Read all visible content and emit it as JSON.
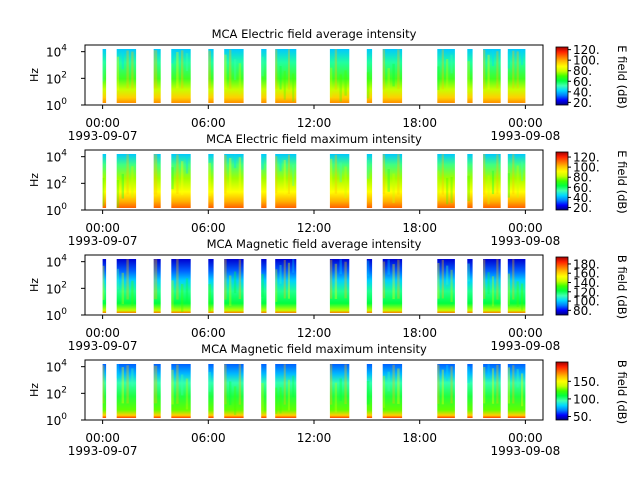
{
  "figure": {
    "time_start": "1993-09-07 00:00",
    "time_end": "1993-09-08 00:00"
  },
  "colormap": [
    "#00007f",
    "#0000ff",
    "#0080ff",
    "#00d8ff",
    "#40ffb0",
    "#00ff40",
    "#40ff00",
    "#c8ff00",
    "#ffff00",
    "#ffc000",
    "#ff7000",
    "#ff2000",
    "#a00000"
  ],
  "chart_data": [
    {
      "type": "heatmap",
      "title": "MCA  Electric field average intensity",
      "ylabel": "Hz",
      "xlabel": "",
      "x_ticks": [
        "00:00",
        "06:00",
        "12:00",
        "18:00",
        "00:00"
      ],
      "x_tick_hours": [
        0,
        6,
        12,
        18,
        24
      ],
      "x_date_labels": [
        {
          "hour": 0,
          "text": "1993-09-07"
        },
        {
          "hour": 24,
          "text": "1993-09-08"
        }
      ],
      "xlim_hours": [
        -1,
        25
      ],
      "y_scale": "log",
      "y_ticks": [
        {
          "base": "10",
          "exp": "0"
        },
        {
          "base": "10",
          "exp": "2"
        },
        {
          "base": "10",
          "exp": "4"
        }
      ],
      "y_tick_exponents": [
        0,
        2,
        4
      ],
      "ylim_exponents": [
        0,
        4.5
      ],
      "colorbar": {
        "label": "E field (dB)",
        "range": [
          15,
          125
        ],
        "ticks": [
          "20.",
          "40.",
          "60.",
          "80.",
          "100.",
          "120."
        ],
        "tick_values": [
          20,
          40,
          60,
          80,
          100,
          120
        ]
      },
      "data_intervals_hours": [
        [
          0.0,
          0.2
        ],
        [
          0.8,
          1.9
        ],
        [
          2.9,
          3.3
        ],
        [
          3.9,
          5.0
        ],
        [
          6.0,
          6.3
        ],
        [
          6.9,
          8.0
        ],
        [
          9.0,
          9.3
        ],
        [
          9.8,
          11.0
        ],
        [
          12.9,
          14.0
        ],
        [
          15.0,
          15.3
        ],
        [
          15.9,
          17.0
        ],
        [
          19.0,
          20.0
        ],
        [
          20.7,
          21.0
        ],
        [
          21.6,
          22.6
        ],
        [
          23.0,
          24.0
        ]
      ],
      "profile": "e_avg"
    },
    {
      "type": "heatmap",
      "title": "MCA  Electric field maximum intensity",
      "ylabel": "Hz",
      "xlabel": "",
      "x_ticks": [
        "00:00",
        "06:00",
        "12:00",
        "18:00",
        "00:00"
      ],
      "x_tick_hours": [
        0,
        6,
        12,
        18,
        24
      ],
      "x_date_labels": [
        {
          "hour": 0,
          "text": "1993-09-07"
        },
        {
          "hour": 24,
          "text": "1993-09-08"
        }
      ],
      "xlim_hours": [
        -1,
        25
      ],
      "y_scale": "log",
      "y_ticks": [
        {
          "base": "10",
          "exp": "0"
        },
        {
          "base": "10",
          "exp": "2"
        },
        {
          "base": "10",
          "exp": "4"
        }
      ],
      "y_tick_exponents": [
        0,
        2,
        4
      ],
      "ylim_exponents": [
        0,
        4.5
      ],
      "colorbar": {
        "label": "E field (dB)",
        "range": [
          15,
          130
        ],
        "ticks": [
          "20.",
          "40.",
          "60.",
          "80.",
          "100.",
          "120."
        ],
        "tick_values": [
          20,
          40,
          60,
          80,
          100,
          120
        ]
      },
      "data_intervals_hours": [
        [
          0.0,
          0.2
        ],
        [
          0.8,
          1.9
        ],
        [
          2.9,
          3.3
        ],
        [
          3.9,
          5.0
        ],
        [
          6.0,
          6.3
        ],
        [
          6.9,
          8.0
        ],
        [
          9.0,
          9.3
        ],
        [
          9.8,
          11.0
        ],
        [
          12.9,
          14.0
        ],
        [
          15.0,
          15.3
        ],
        [
          15.9,
          17.0
        ],
        [
          19.0,
          20.0
        ],
        [
          20.7,
          21.0
        ],
        [
          21.6,
          22.6
        ],
        [
          23.0,
          24.0
        ]
      ],
      "profile": "e_max"
    },
    {
      "type": "heatmap",
      "title": "MCA  Magnetic field average intensity",
      "ylabel": "Hz",
      "xlabel": "",
      "x_ticks": [
        "00:00",
        "06:00",
        "12:00",
        "18:00",
        "00:00"
      ],
      "x_tick_hours": [
        0,
        6,
        12,
        18,
        24
      ],
      "x_date_labels": [
        {
          "hour": 0,
          "text": "1993-09-07"
        },
        {
          "hour": 24,
          "text": "1993-09-08"
        }
      ],
      "xlim_hours": [
        -1,
        25
      ],
      "y_scale": "log",
      "y_ticks": [
        {
          "base": "10",
          "exp": "0"
        },
        {
          "base": "10",
          "exp": "2"
        },
        {
          "base": "10",
          "exp": "4"
        }
      ],
      "y_tick_exponents": [
        0,
        2,
        4
      ],
      "ylim_exponents": [
        0,
        4.5
      ],
      "colorbar": {
        "label": "B field (dB)",
        "range": [
          70,
          195
        ],
        "ticks": [
          "80.",
          "100.",
          "120.",
          "140.",
          "160.",
          "180."
        ],
        "tick_values": [
          80,
          100,
          120,
          140,
          160,
          180
        ]
      },
      "data_intervals_hours": [
        [
          0.0,
          0.2
        ],
        [
          0.8,
          1.9
        ],
        [
          2.9,
          3.3
        ],
        [
          3.9,
          5.0
        ],
        [
          6.0,
          6.3
        ],
        [
          6.9,
          8.0
        ],
        [
          9.0,
          9.3
        ],
        [
          9.8,
          11.0
        ],
        [
          12.9,
          14.0
        ],
        [
          15.0,
          15.3
        ],
        [
          15.9,
          17.0
        ],
        [
          19.0,
          20.0
        ],
        [
          20.7,
          21.0
        ],
        [
          21.6,
          22.6
        ],
        [
          23.0,
          24.0
        ]
      ],
      "profile": "b_avg"
    },
    {
      "type": "heatmap",
      "title": "MCA  Magnetic field maximum intensity",
      "ylabel": "Hz",
      "xlabel": "",
      "x_ticks": [
        "00:00",
        "06:00",
        "12:00",
        "18:00",
        "00:00"
      ],
      "x_tick_hours": [
        0,
        6,
        12,
        18,
        24
      ],
      "x_date_labels": [
        {
          "hour": 0,
          "text": "1993-09-07"
        },
        {
          "hour": 24,
          "text": "1993-09-08"
        }
      ],
      "xlim_hours": [
        -1,
        25
      ],
      "y_scale": "log",
      "y_ticks": [
        {
          "base": "10",
          "exp": "0"
        },
        {
          "base": "10",
          "exp": "2"
        },
        {
          "base": "10",
          "exp": "4"
        }
      ],
      "y_tick_exponents": [
        0,
        2,
        4
      ],
      "ylim_exponents": [
        0,
        4.5
      ],
      "colorbar": {
        "label": "B field (dB)",
        "range": [
          40,
          205
        ],
        "ticks": [
          "50.",
          "100.",
          "150."
        ],
        "tick_values": [
          50,
          100,
          150
        ]
      },
      "data_intervals_hours": [
        [
          0.0,
          0.2
        ],
        [
          0.8,
          1.9
        ],
        [
          2.9,
          3.3
        ],
        [
          3.9,
          5.0
        ],
        [
          6.0,
          6.3
        ],
        [
          6.9,
          8.0
        ],
        [
          9.0,
          9.3
        ],
        [
          9.8,
          11.0
        ],
        [
          12.9,
          14.0
        ],
        [
          15.0,
          15.3
        ],
        [
          15.9,
          17.0
        ],
        [
          19.0,
          20.0
        ],
        [
          20.7,
          21.0
        ],
        [
          21.6,
          22.6
        ],
        [
          23.0,
          24.0
        ]
      ],
      "profile": "b_max"
    }
  ]
}
